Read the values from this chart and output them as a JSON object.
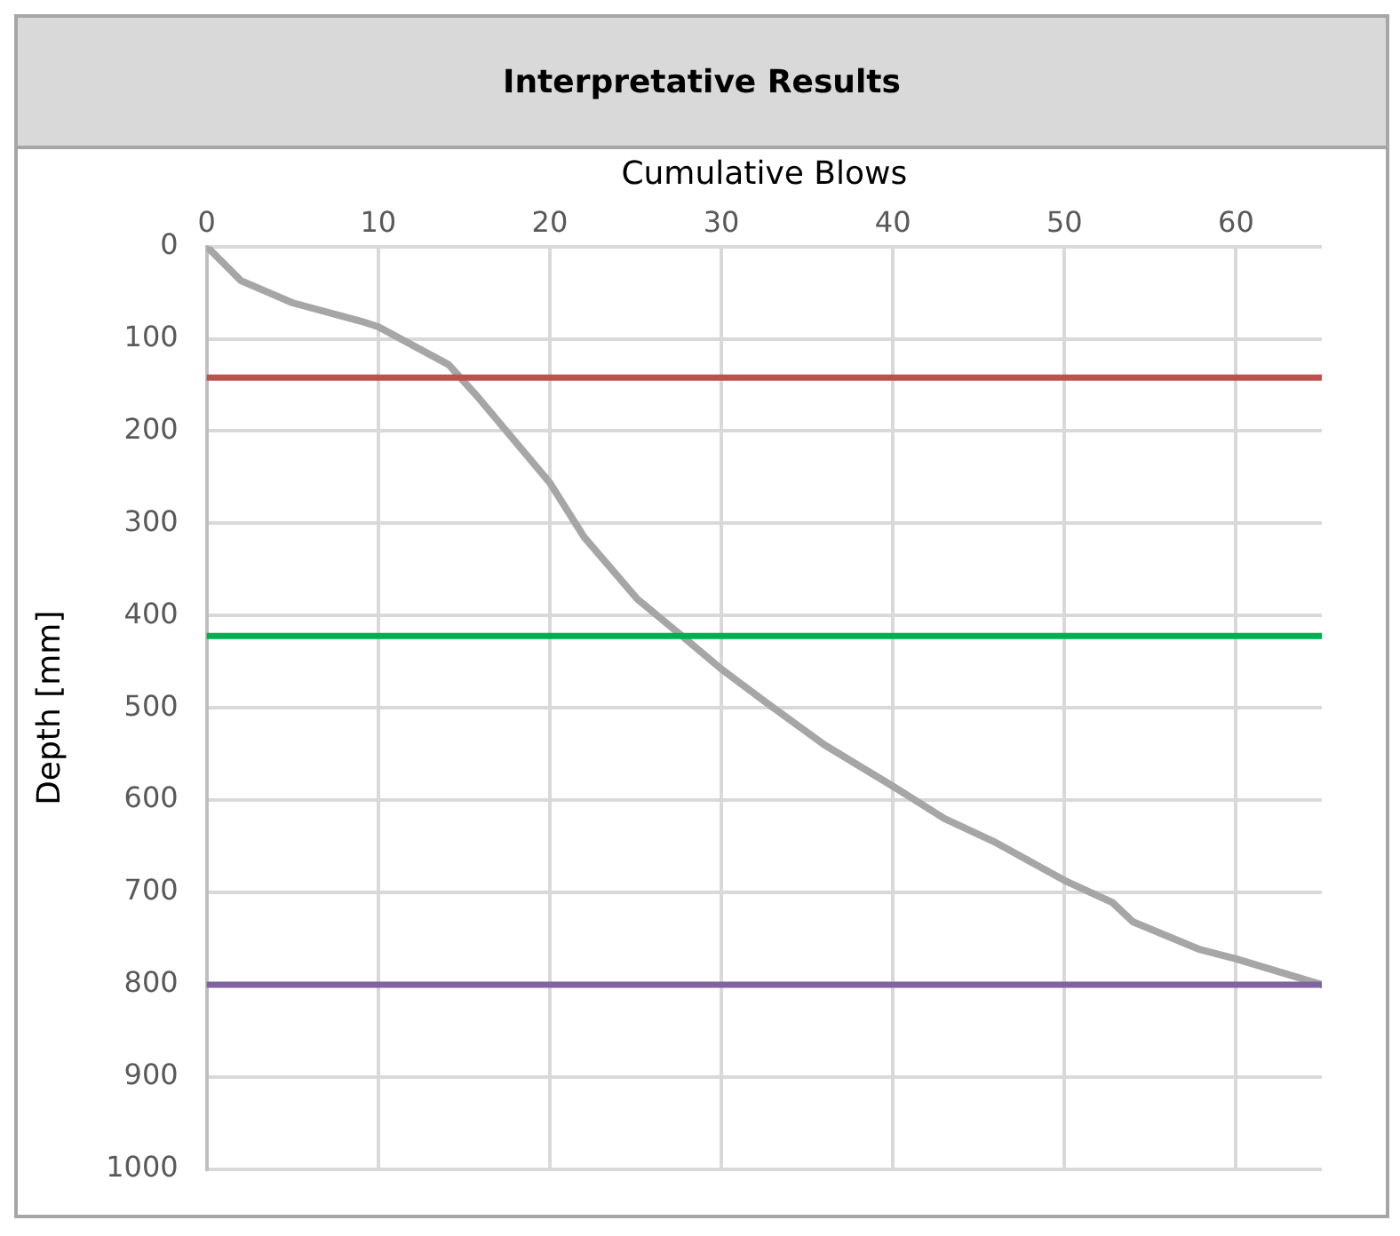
{
  "chart_data": {
    "type": "line",
    "title": "Interpretative Results",
    "xlabel": "Cumulative Blows",
    "ylabel": "Depth [mm]",
    "xlim": [
      0,
      65
    ],
    "xticks": [
      0,
      10,
      20,
      30,
      40,
      50,
      60
    ],
    "ylim": [
      1000,
      0
    ],
    "yticks": [
      0,
      100,
      200,
      300,
      400,
      500,
      600,
      700,
      800,
      900,
      1000
    ],
    "grid": true,
    "legend": false,
    "marker": "none",
    "line_style": "solid",
    "series": [
      {
        "color": "#a6a6a6",
        "x": [
          0,
          2,
          5,
          9,
          10,
          14.1,
          15.8,
          20,
          22,
          25.1,
          27.7,
          30,
          32.6,
          36,
          40,
          43,
          46,
          50,
          52.8,
          54,
          57.9,
          60,
          65
        ],
        "values": [
          0,
          37,
          61,
          81,
          87,
          128,
          163,
          256,
          315,
          382,
          422,
          458,
          494,
          540,
          585,
          620,
          646,
          687,
          711,
          732,
          762,
          772,
          800
        ]
      }
    ],
    "ref_lines": [
      {
        "axis": "y",
        "value": 142,
        "color": "#c0504d"
      },
      {
        "axis": "y",
        "value": 422,
        "color": "#00b050"
      },
      {
        "axis": "y",
        "value": 800,
        "color": "#8064a2"
      }
    ]
  }
}
